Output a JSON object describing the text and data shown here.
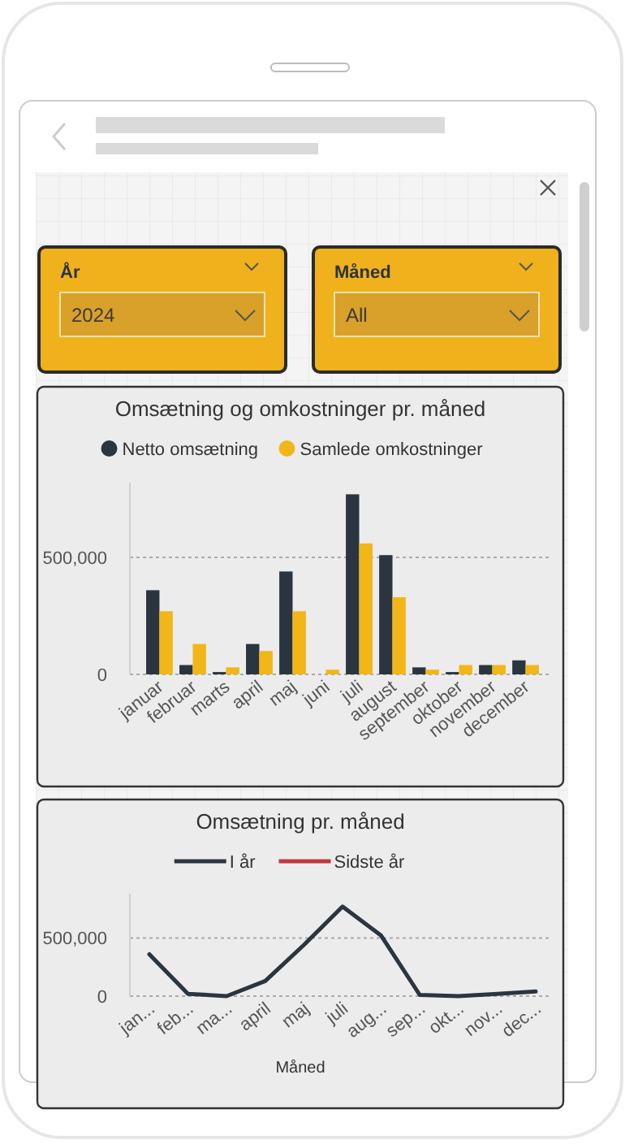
{
  "chart_data": [
    {
      "type": "other",
      "annotations": [
        "År",
        "2024",
        "Måned",
        "All"
      ]
    },
    {
      "type": "bar",
      "title": "Omsætning og omkostninger pr. måned",
      "categories": [
        "januar",
        "februar",
        "marts",
        "april",
        "maj",
        "juni",
        "juli",
        "august",
        "september",
        "oktober",
        "november",
        "december"
      ],
      "series": [
        {
          "name": "Netto omsætning",
          "color": "#2b3540",
          "values": [
            360000,
            40000,
            10000,
            130000,
            440000,
            0,
            770000,
            510000,
            30000,
            10000,
            40000,
            60000
          ]
        },
        {
          "name": "Samlede omkostninger",
          "color": "#f2b619",
          "values": [
            270000,
            130000,
            30000,
            100000,
            270000,
            20000,
            560000,
            330000,
            20000,
            40000,
            40000,
            40000
          ]
        }
      ],
      "ylim": [
        0,
        820000
      ],
      "yticks": [
        0,
        {
          "value": 500000,
          "label": "500,000"
        }
      ],
      "grid": "y",
      "legend": "top"
    },
    {
      "type": "line",
      "title": "Omsætning pr. måned",
      "xlabel": "Måned",
      "categories": [
        "jan...",
        "feb...",
        "ma...",
        "april",
        "maj",
        "juli",
        "aug...",
        "sep...",
        "okt...",
        "nov...",
        "dec..."
      ],
      "series": [
        {
          "name": "I år",
          "color": "#2b3540",
          "values": [
            360000,
            20000,
            0,
            130000,
            440000,
            770000,
            520000,
            10000,
            0,
            20000,
            40000
          ]
        },
        {
          "name": "Sidste år",
          "color": "#c0393b",
          "values": [
            null,
            null,
            null,
            null,
            null,
            null,
            null,
            null,
            null,
            null,
            null
          ]
        }
      ],
      "ylim": [
        0,
        880000
      ],
      "yticks": [
        0,
        {
          "value": 500000,
          "label": "500,000"
        }
      ],
      "grid": "y",
      "legend": "top",
      "line_style": "solid",
      "marker": "none"
    }
  ]
}
